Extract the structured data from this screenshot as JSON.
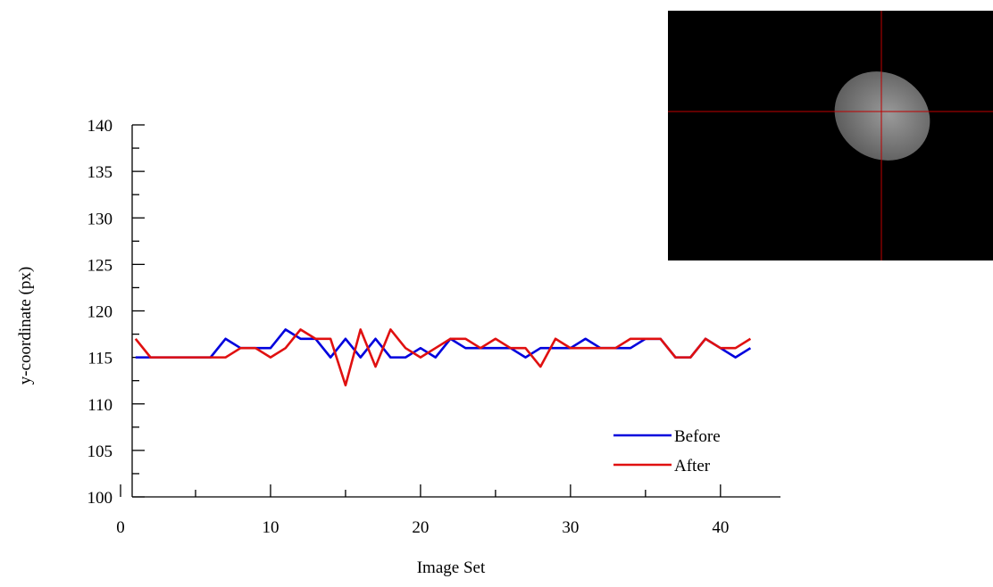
{
  "chart_data": {
    "type": "line",
    "x_label": "Image Set",
    "y_label": "y-coordinate (px)",
    "x": [
      1,
      2,
      3,
      4,
      5,
      6,
      7,
      8,
      9,
      10,
      11,
      12,
      13,
      14,
      15,
      16,
      17,
      18,
      19,
      20,
      21,
      22,
      23,
      24,
      25,
      26,
      27,
      28,
      29,
      30,
      31,
      32,
      33,
      34,
      35,
      36,
      37,
      38,
      39,
      40,
      41,
      42
    ],
    "series": [
      {
        "name": "Before",
        "color": "#0000dd",
        "values": [
          115,
          115,
          115,
          115,
          115,
          115,
          117,
          116,
          116,
          116,
          118,
          117,
          117,
          115,
          117,
          115,
          117,
          115,
          115,
          116,
          115,
          117,
          116,
          116,
          116,
          116,
          115,
          116,
          116,
          116,
          117,
          116,
          116,
          116,
          117,
          117,
          115,
          115,
          117,
          116,
          115,
          116
        ]
      },
      {
        "name": "After",
        "color": "#e01010",
        "values": [
          117,
          115,
          115,
          115,
          115,
          115,
          115,
          116,
          116,
          115,
          116,
          118,
          117,
          117,
          112,
          118,
          114,
          118,
          116,
          115,
          116,
          117,
          117,
          116,
          117,
          116,
          116,
          114,
          117,
          116,
          116,
          116,
          116,
          117,
          117,
          117,
          115,
          115,
          117,
          116,
          116,
          117
        ]
      }
    ],
    "xlim": [
      0,
      44
    ],
    "xticks": [
      0,
      10,
      20,
      30,
      40
    ],
    "ylim": [
      100,
      140
    ],
    "yticks": [
      100,
      105,
      110,
      115,
      120,
      125,
      130,
      135,
      140
    ],
    "legend": "lower right"
  }
}
